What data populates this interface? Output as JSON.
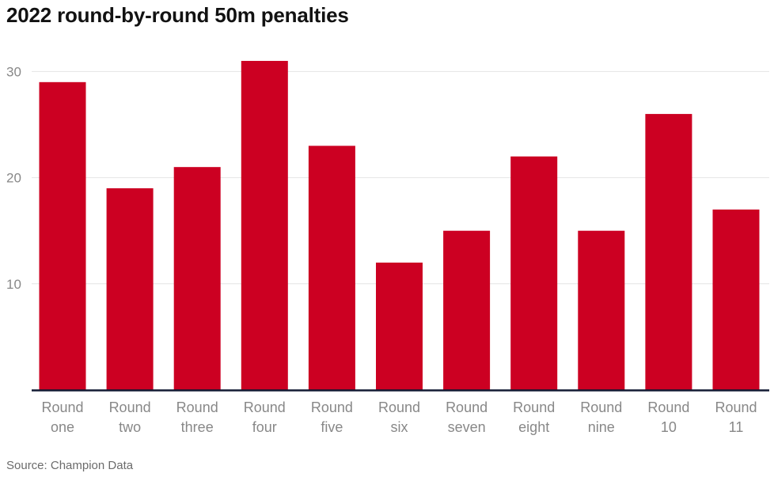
{
  "chart_data": {
    "type": "bar",
    "title": "2022 round-by-round 50m penalties",
    "xlabel": "",
    "ylabel": "",
    "categories": [
      [
        "Round",
        "one"
      ],
      [
        "Round",
        "two"
      ],
      [
        "Round",
        "three"
      ],
      [
        "Round",
        "four"
      ],
      [
        "Round",
        "five"
      ],
      [
        "Round",
        "six"
      ],
      [
        "Round",
        "seven"
      ],
      [
        "Round",
        "eight"
      ],
      [
        "Round",
        "nine"
      ],
      [
        "Round",
        "10"
      ],
      [
        "Round",
        "11"
      ]
    ],
    "values": [
      29,
      19,
      21,
      31,
      23,
      12,
      15,
      22,
      15,
      26,
      17
    ],
    "yticks": [
      10,
      20,
      30
    ],
    "ylim": [
      0,
      32
    ],
    "grid": true,
    "bar_color": "#cc0022",
    "axis_color": "#121a33"
  },
  "source": "Source: Champion Data"
}
